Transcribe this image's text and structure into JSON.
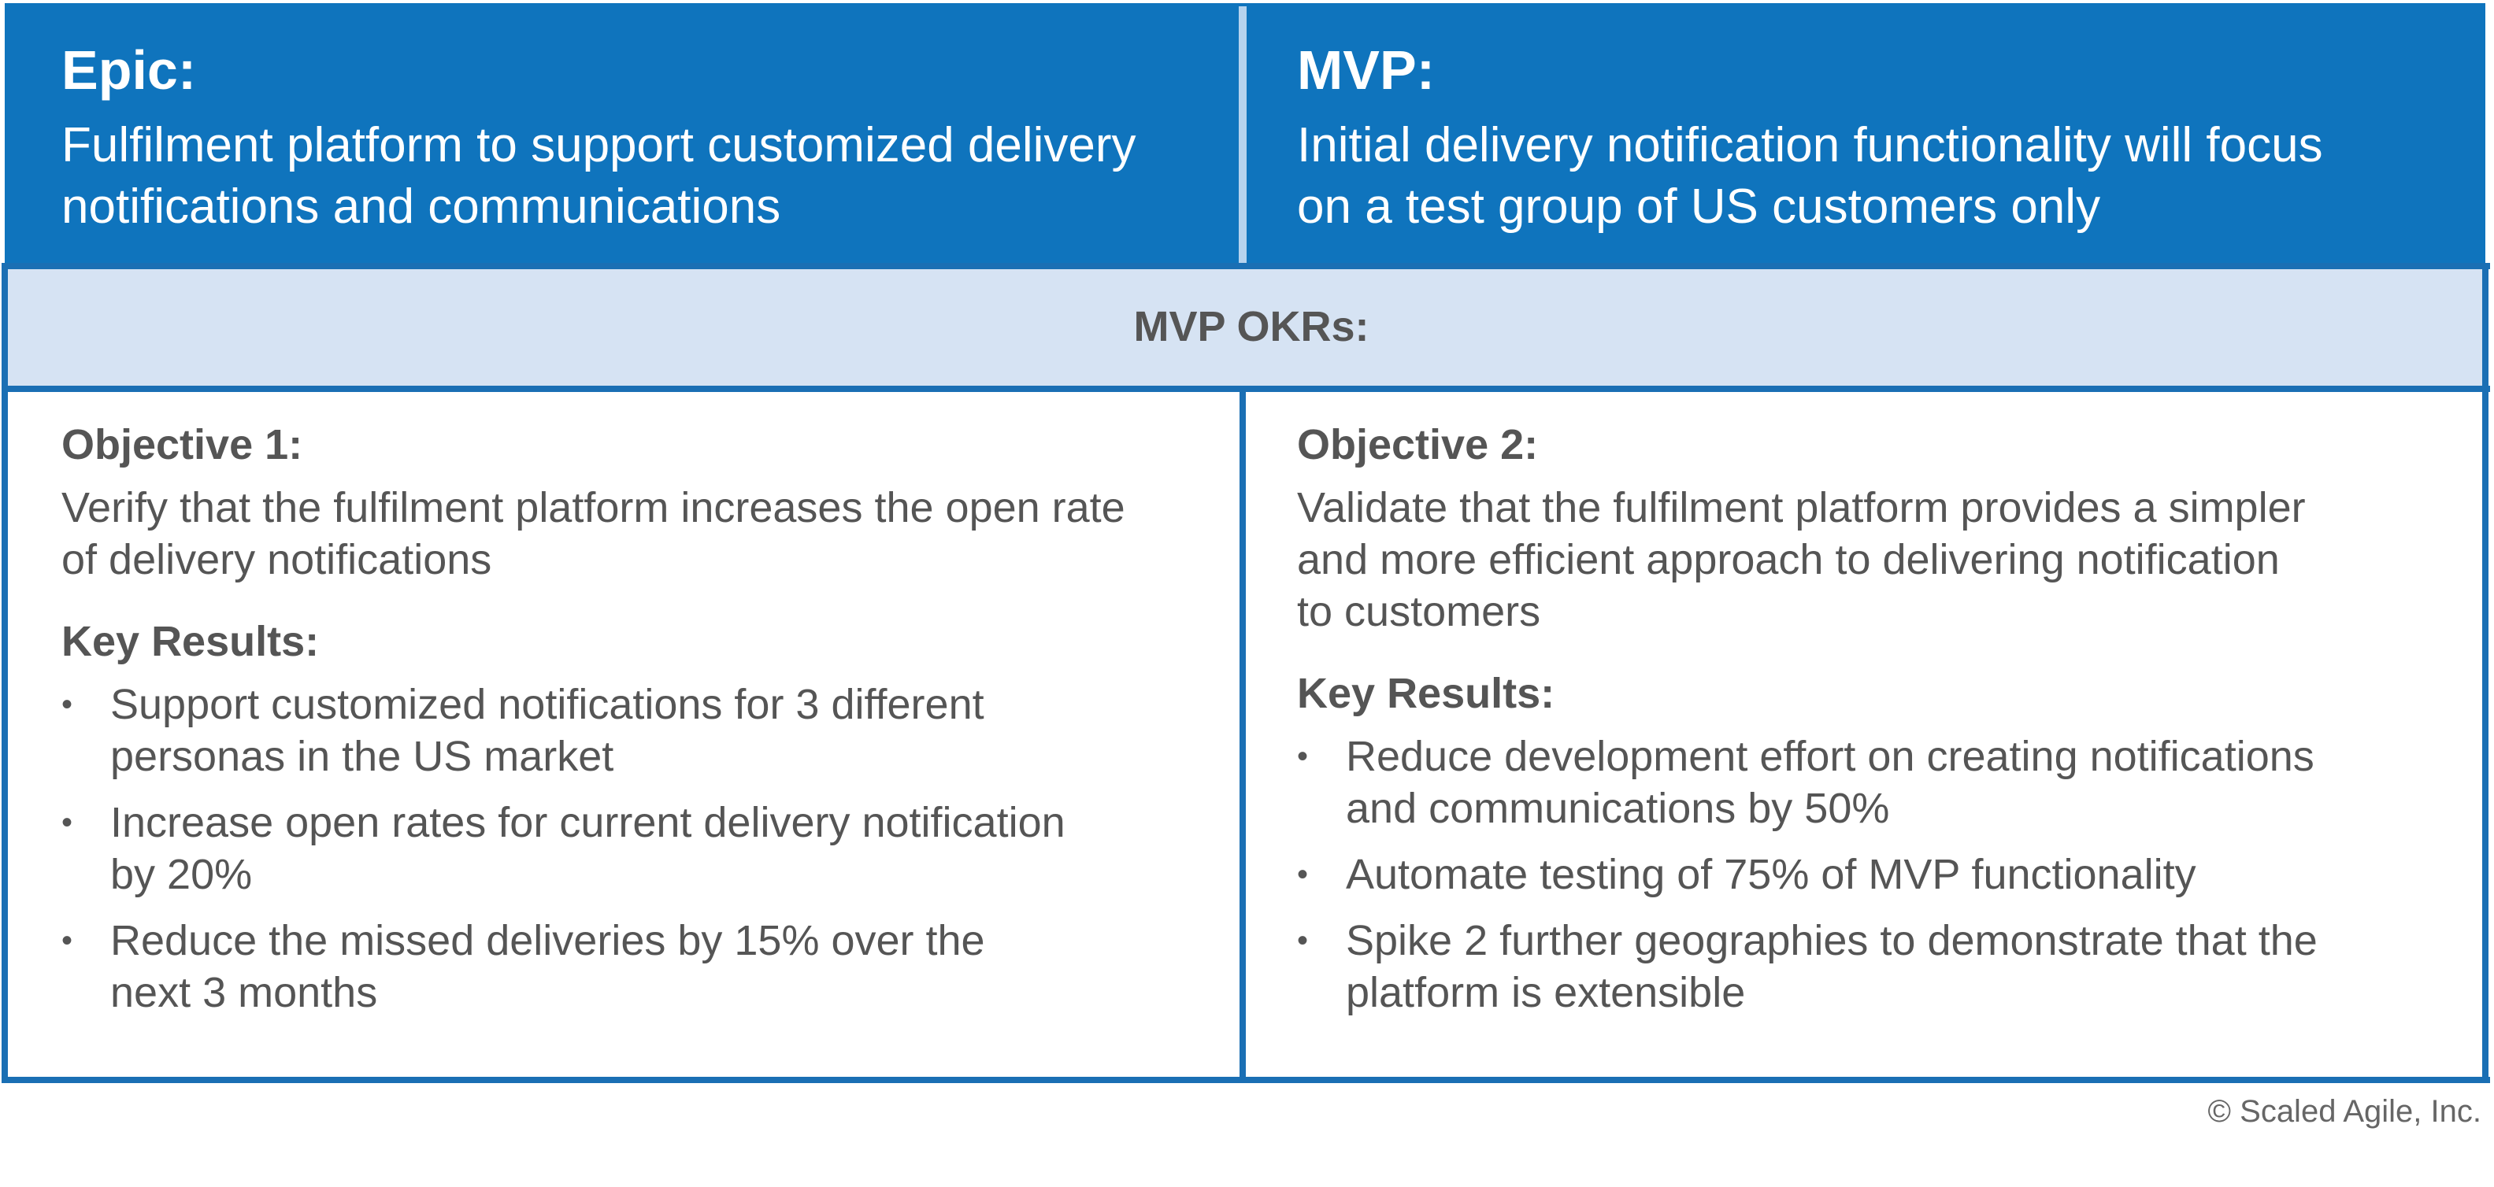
{
  "header": {
    "left": {
      "title": "Epic:",
      "lines": [
        "Fulfilment platform to support customized delivery",
        "notifications and communications"
      ]
    },
    "right": {
      "title": "MVP:",
      "lines": [
        "Initial delivery notification functionality will focus",
        "on a test group of US customers only"
      ]
    }
  },
  "okr": {
    "title": "MVP OKRs:"
  },
  "objectives": [
    {
      "title": "Objective 1:",
      "lines": [
        "Verify that the fulfilment platform increases the open rate",
        "of delivery notifications"
      ],
      "key_results_title": "Key Results:",
      "key_results": [
        [
          "Support customized notifications for 3 different",
          "personas in the US market"
        ],
        [
          "Increase open rates for current delivery notification",
          "by 20%"
        ],
        [
          "Reduce the missed deliveries by 15% over the",
          "next 3 months"
        ]
      ]
    },
    {
      "title": "Objective 2:",
      "lines": [
        "Validate that the fulfilment platform provides a simpler",
        "and more efficient approach to delivering notification",
        "to customers"
      ],
      "key_results_title": "Key Results:",
      "key_results": [
        [
          "Reduce development effort on creating notifications",
          "and communications by 50%"
        ],
        [
          "Automate testing of 75% of MVP functionality"
        ],
        [
          "Spike 2 further geographies to demonstrate that the",
          "platform is extensible"
        ]
      ]
    }
  ],
  "bullet": "•",
  "footer": {
    "copyright": "© Scaled Agile, Inc."
  },
  "colors": {
    "header_bg": "#0f74bd",
    "band_bg": "#d6e3f3",
    "border": "#1a6fb4",
    "text": "#555555"
  }
}
